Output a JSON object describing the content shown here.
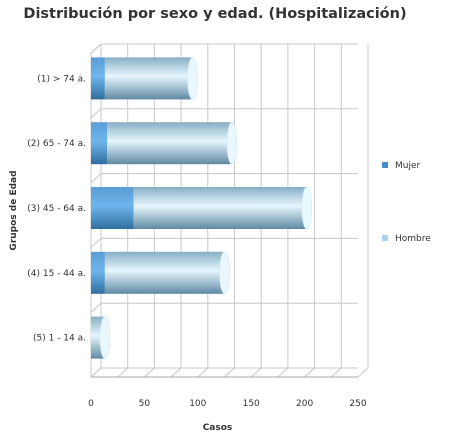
{
  "chart_data": {
    "type": "bar",
    "orientation": "horizontal",
    "stacked": true,
    "title": "Distribución por sexo y edad. (Hospitalización)",
    "xlabel": "Casos",
    "ylabel": "Grupos de Edad",
    "xlim": [
      0,
      250
    ],
    "xticks": [
      "0",
      "50",
      "100",
      "150",
      "200",
      "250"
    ],
    "categories": [
      "(1) > 74 a.",
      "(2) 65 - 74 a.",
      "(3) 45 - 64 a.",
      "(4) 15 - 44 a.",
      "(5) 1 - 14 a."
    ],
    "series": [
      {
        "name": "Mujer",
        "values": [
          13,
          15,
          40,
          13,
          0
        ],
        "color": "#4a8ec7"
      },
      {
        "name": "Hombre",
        "values": [
          82,
          117,
          162,
          112,
          13
        ],
        "color": "#a9d3ec"
      }
    ],
    "grid": true,
    "legend": "right"
  }
}
